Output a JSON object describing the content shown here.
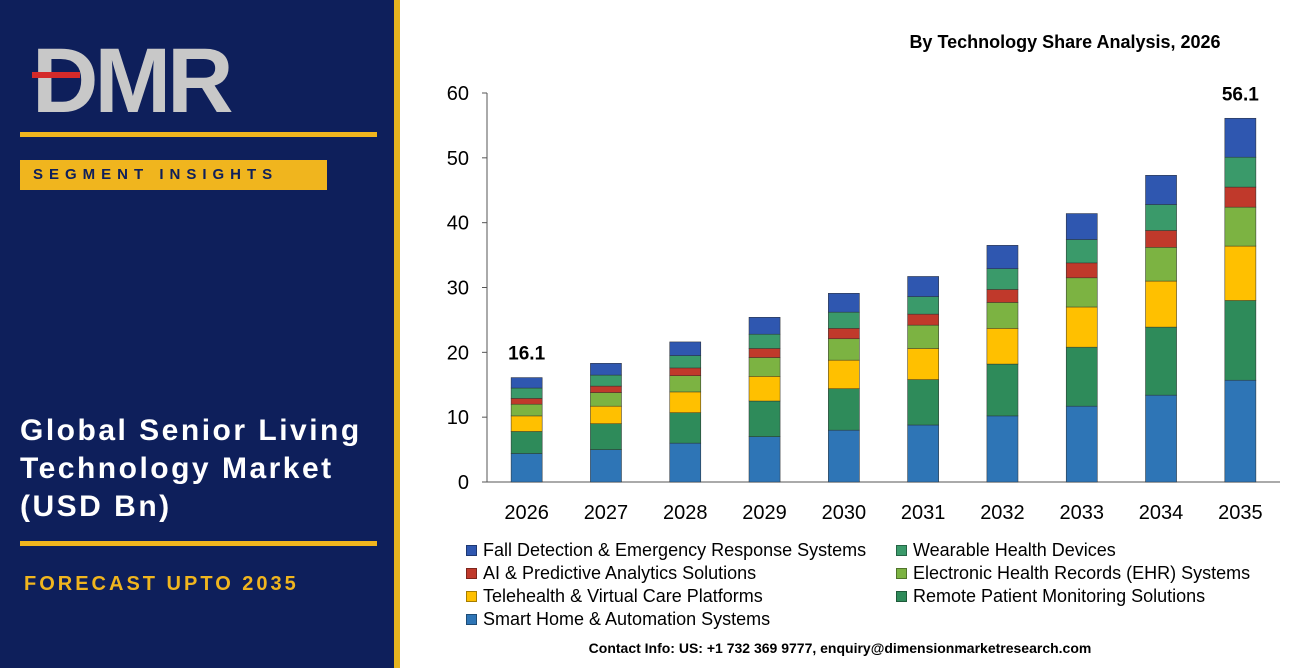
{
  "sidebar": {
    "logo_text": "DMR",
    "badge": "SEGMENT INSIGHTS",
    "title_lines": [
      "Global Senior Living",
      "Technology Market",
      "(USD Bn)"
    ],
    "forecast": "FORECAST UPTO 2035",
    "colors": {
      "background": "#0e1f5b",
      "accent": "#f0b51e"
    }
  },
  "contact": "Contact Info: US: +1 732 369 9777, enquiry@dimensionmarketresearch.com",
  "chart_data": {
    "type": "bar",
    "stacked": true,
    "title": "By Technology Share Analysis, 2026",
    "xlabel": "",
    "ylabel": "",
    "ylim": [
      0,
      60
    ],
    "yticks": [
      0,
      10,
      20,
      30,
      40,
      50,
      60
    ],
    "grid": false,
    "legend_position": "bottom",
    "categories": [
      "2026",
      "2027",
      "2028",
      "2029",
      "2030",
      "2031",
      "2032",
      "2033",
      "2034",
      "2035"
    ],
    "annotations": [
      {
        "category": "2026",
        "text": "16.1"
      },
      {
        "category": "2035",
        "text": "56.1"
      }
    ],
    "series": [
      {
        "name": "Smart Home & Automation Systems",
        "color": "#2e75b6",
        "values": [
          4.4,
          5.0,
          6.0,
          7.0,
          8.0,
          8.8,
          10.2,
          11.7,
          13.4,
          15.7
        ]
      },
      {
        "name": "Remote Patient Monitoring Solutions",
        "color": "#2e8b5a",
        "values": [
          3.4,
          4.0,
          4.7,
          5.5,
          6.4,
          7.0,
          8.0,
          9.1,
          10.5,
          12.3
        ]
      },
      {
        "name": "Telehealth & Virtual Care Platforms",
        "color": "#ffc000",
        "values": [
          2.4,
          2.7,
          3.2,
          3.8,
          4.4,
          4.8,
          5.5,
          6.2,
          7.1,
          8.4
        ]
      },
      {
        "name": "Electronic Health Records (EHR) Systems",
        "color": "#7cb342",
        "values": [
          1.8,
          2.1,
          2.5,
          2.9,
          3.3,
          3.6,
          4.0,
          4.5,
          5.2,
          6.0
        ]
      },
      {
        "name": "AI & Predictive Analytics Solutions",
        "color": "#c0392b",
        "values": [
          0.9,
          1.0,
          1.2,
          1.4,
          1.6,
          1.7,
          2.0,
          2.3,
          2.6,
          3.1
        ]
      },
      {
        "name": "Wearable Health Devices",
        "color": "#3a9a6a",
        "values": [
          1.6,
          1.7,
          1.9,
          2.2,
          2.5,
          2.7,
          3.2,
          3.6,
          4.0,
          4.6
        ]
      },
      {
        "name": "Fall Detection & Emergency Response Systems",
        "color": "#2f57b0",
        "values": [
          1.6,
          1.8,
          2.1,
          2.6,
          2.9,
          3.1,
          3.6,
          4.0,
          4.5,
          6.0
        ]
      }
    ],
    "legend_order": [
      "Fall Detection & Emergency Response Systems",
      "Wearable Health Devices",
      "AI & Predictive Analytics Solutions",
      "Electronic Health Records (EHR) Systems",
      "Telehealth & Virtual Care Platforms",
      "Remote Patient Monitoring Solutions",
      "Smart Home & Automation Systems"
    ]
  }
}
